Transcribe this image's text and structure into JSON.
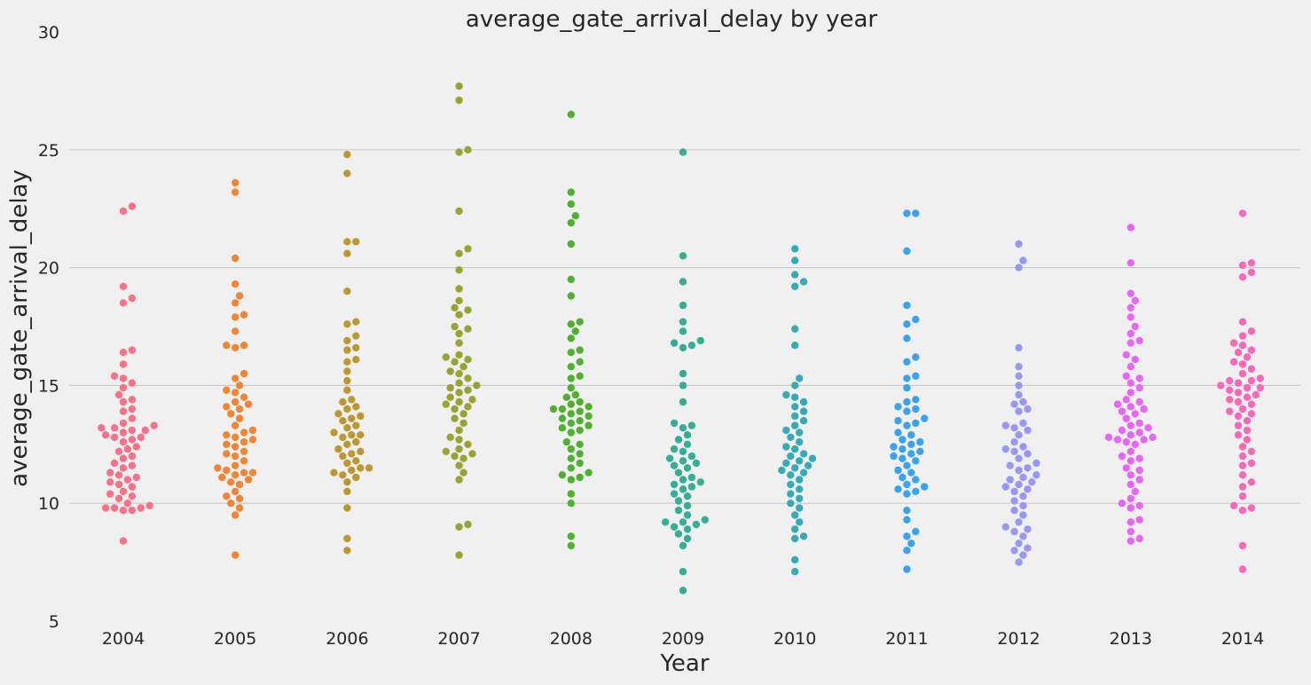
{
  "chart_data": {
    "type": "scatter",
    "subtype": "swarm",
    "title": "average_gate_arrival_delay by year",
    "xlabel": "Year",
    "ylabel": "average_gate_arrival_delay",
    "ylim": [
      5,
      30
    ],
    "yticks": [
      5,
      10,
      15,
      20,
      25,
      30
    ],
    "grid": "horizontal",
    "categories": [
      "2004",
      "2005",
      "2006",
      "2007",
      "2008",
      "2009",
      "2010",
      "2011",
      "2012",
      "2013",
      "2014"
    ],
    "colors": [
      "#f77189",
      "#ee8636",
      "#bb9832",
      "#99a233",
      "#50b131",
      "#35ae93",
      "#37abb5",
      "#3ba3ec",
      "#9a97f4",
      "#e866f4",
      "#f669b7"
    ],
    "series": [
      {
        "name": "2004",
        "values": [
          22.6,
          22.4,
          19.2,
          18.7,
          18.5,
          16.5,
          16.4,
          15.9,
          15.4,
          15.3,
          15.1,
          14.9,
          14.6,
          14.4,
          14.3,
          14.0,
          13.9,
          13.6,
          13.4,
          13.3,
          13.2,
          13.2,
          13.1,
          13.1,
          13.0,
          12.9,
          12.8,
          12.8,
          12.7,
          12.6,
          12.4,
          12.3,
          12.2,
          12.0,
          11.9,
          11.7,
          11.6,
          11.5,
          11.3,
          11.2,
          11.1,
          11.0,
          10.9,
          10.8,
          10.7,
          10.5,
          10.4,
          10.3,
          10.2,
          10.0,
          9.9,
          9.8,
          9.8,
          9.8,
          9.7,
          9.7,
          8.4
        ]
      },
      {
        "name": "2005",
        "values": [
          23.6,
          23.2,
          20.4,
          19.3,
          18.8,
          18.5,
          18.0,
          17.9,
          17.3,
          16.7,
          16.7,
          16.6,
          15.5,
          15.3,
          15.0,
          14.8,
          14.7,
          14.5,
          14.3,
          14.2,
          14.1,
          14.0,
          13.8,
          13.6,
          13.3,
          13.1,
          13.0,
          12.9,
          12.8,
          12.7,
          12.6,
          12.5,
          12.4,
          12.2,
          12.1,
          12.0,
          11.8,
          11.6,
          11.5,
          11.4,
          11.3,
          11.3,
          11.2,
          11.1,
          11.0,
          10.9,
          10.8,
          10.5,
          10.3,
          10.2,
          10.0,
          9.8,
          9.5,
          7.8
        ]
      },
      {
        "name": "2006",
        "values": [
          24.8,
          24.0,
          21.1,
          21.1,
          20.6,
          19.0,
          17.7,
          17.6,
          17.1,
          16.9,
          16.6,
          16.5,
          16.1,
          16.0,
          15.6,
          15.2,
          14.8,
          14.4,
          14.3,
          14.1,
          14.0,
          13.8,
          13.7,
          13.6,
          13.5,
          13.3,
          13.2,
          13.0,
          12.9,
          12.9,
          12.8,
          12.6,
          12.5,
          12.3,
          12.2,
          12.1,
          12.0,
          11.8,
          11.7,
          11.5,
          11.5,
          11.4,
          11.3,
          11.2,
          11.1,
          10.9,
          10.5,
          9.8,
          8.5,
          8.0
        ]
      },
      {
        "name": "2007",
        "values": [
          27.7,
          27.1,
          25.0,
          24.9,
          22.4,
          20.8,
          20.6,
          19.9,
          19.1,
          18.6,
          18.3,
          18.2,
          18.0,
          17.5,
          17.4,
          17.2,
          16.8,
          16.3,
          16.2,
          16.1,
          16.0,
          15.8,
          15.6,
          15.5,
          15.3,
          15.1,
          15.0,
          14.9,
          14.8,
          14.7,
          14.5,
          14.4,
          14.3,
          14.2,
          14.1,
          14.0,
          13.8,
          13.6,
          13.4,
          13.1,
          12.8,
          12.7,
          12.5,
          12.3,
          12.2,
          12.1,
          12.0,
          11.9,
          11.6,
          11.3,
          11.0,
          9.1,
          9.0,
          7.8
        ]
      },
      {
        "name": "2008",
        "values": [
          26.5,
          23.2,
          22.7,
          22.2,
          21.9,
          21.0,
          19.5,
          18.8,
          17.7,
          17.6,
          17.3,
          17.0,
          16.5,
          16.4,
          16.0,
          15.8,
          15.4,
          15.3,
          14.9,
          14.6,
          14.5,
          14.3,
          14.2,
          14.1,
          14.0,
          14.0,
          13.9,
          13.8,
          13.7,
          13.6,
          13.5,
          13.4,
          13.3,
          13.2,
          13.1,
          13.0,
          12.6,
          12.5,
          12.3,
          12.1,
          11.9,
          11.7,
          11.5,
          11.3,
          11.2,
          11.1,
          11.0,
          10.4,
          10.0,
          8.6,
          8.2
        ]
      },
      {
        "name": "2009",
        "values": [
          24.9,
          20.5,
          19.4,
          18.4,
          17.7,
          17.3,
          16.9,
          16.8,
          16.7,
          16.6,
          15.5,
          15.0,
          14.3,
          13.4,
          13.3,
          13.2,
          12.9,
          12.7,
          12.5,
          12.3,
          12.2,
          12.0,
          11.9,
          11.8,
          11.7,
          11.6,
          11.5,
          11.3,
          11.1,
          11.0,
          10.9,
          10.8,
          10.7,
          10.6,
          10.4,
          10.3,
          10.1,
          9.9,
          9.7,
          9.5,
          9.3,
          9.2,
          9.2,
          9.1,
          9.0,
          8.9,
          8.7,
          8.5,
          8.2,
          7.1,
          6.3
        ]
      },
      {
        "name": "2010",
        "values": [
          20.8,
          20.3,
          19.7,
          19.4,
          19.2,
          17.4,
          16.7,
          15.3,
          15.0,
          14.6,
          14.5,
          14.3,
          14.1,
          13.9,
          13.7,
          13.5,
          13.3,
          13.1,
          13.0,
          12.8,
          12.6,
          12.4,
          12.3,
          12.1,
          12.0,
          11.9,
          11.8,
          11.7,
          11.6,
          11.5,
          11.4,
          11.3,
          11.2,
          11.0,
          10.8,
          10.6,
          10.4,
          10.2,
          10.0,
          9.8,
          9.5,
          9.2,
          8.9,
          8.6,
          8.5,
          7.6,
          7.1
        ]
      },
      {
        "name": "2011",
        "values": [
          22.3,
          22.3,
          20.7,
          18.4,
          17.8,
          17.6,
          17.0,
          16.2,
          16.0,
          15.4,
          15.3,
          14.9,
          14.4,
          14.3,
          14.1,
          14.0,
          13.9,
          13.6,
          13.5,
          13.4,
          13.3,
          13.0,
          12.9,
          12.7,
          12.6,
          12.5,
          12.4,
          12.3,
          12.2,
          12.1,
          12.0,
          11.9,
          11.8,
          11.6,
          11.4,
          11.3,
          11.1,
          11.0,
          10.8,
          10.7,
          10.6,
          10.5,
          10.4,
          9.7,
          9.3,
          8.8,
          8.6,
          8.3,
          8.0,
          7.2
        ]
      },
      {
        "name": "2012",
        "values": [
          21.0,
          20.3,
          20.0,
          16.6,
          15.8,
          15.4,
          15.0,
          14.6,
          14.3,
          14.2,
          14.0,
          13.9,
          13.4,
          13.3,
          13.2,
          13.1,
          12.9,
          12.6,
          12.4,
          12.3,
          12.2,
          12.1,
          11.9,
          11.7,
          11.6,
          11.5,
          11.4,
          11.2,
          11.1,
          11.0,
          10.9,
          10.8,
          10.7,
          10.6,
          10.5,
          10.3,
          10.1,
          9.9,
          9.7,
          9.5,
          9.2,
          9.0,
          8.9,
          8.8,
          8.6,
          8.3,
          8.1,
          8.0,
          7.8,
          7.5
        ]
      },
      {
        "name": "2013",
        "values": [
          21.7,
          20.2,
          18.9,
          18.6,
          18.3,
          17.9,
          17.5,
          17.2,
          16.9,
          16.8,
          16.3,
          16.1,
          15.8,
          15.4,
          15.3,
          15.1,
          14.9,
          14.7,
          14.4,
          14.3,
          14.2,
          14.1,
          14.0,
          13.9,
          13.8,
          13.6,
          13.4,
          13.3,
          13.2,
          13.1,
          13.0,
          12.9,
          12.8,
          12.8,
          12.7,
          12.7,
          12.6,
          12.5,
          12.2,
          12.0,
          11.9,
          11.8,
          11.5,
          11.4,
          11.2,
          11.0,
          10.8,
          10.5,
          10.2,
          10.0,
          9.9,
          9.8,
          9.3,
          9.2,
          8.8,
          8.5,
          8.4
        ]
      },
      {
        "name": "2014",
        "values": [
          22.3,
          20.2,
          20.1,
          19.8,
          19.6,
          17.7,
          17.3,
          17.1,
          16.8,
          16.7,
          16.5,
          16.4,
          16.2,
          16.0,
          15.9,
          15.7,
          15.5,
          15.3,
          15.2,
          15.2,
          15.1,
          15.0,
          14.9,
          14.9,
          14.8,
          14.7,
          14.6,
          14.5,
          14.4,
          14.3,
          14.2,
          14.0,
          13.9,
          13.8,
          13.7,
          13.5,
          13.3,
          13.1,
          12.9,
          12.7,
          12.4,
          12.2,
          12.0,
          11.7,
          11.6,
          11.2,
          10.9,
          10.7,
          10.3,
          9.9,
          9.8,
          9.7,
          8.2,
          7.2
        ]
      }
    ]
  }
}
